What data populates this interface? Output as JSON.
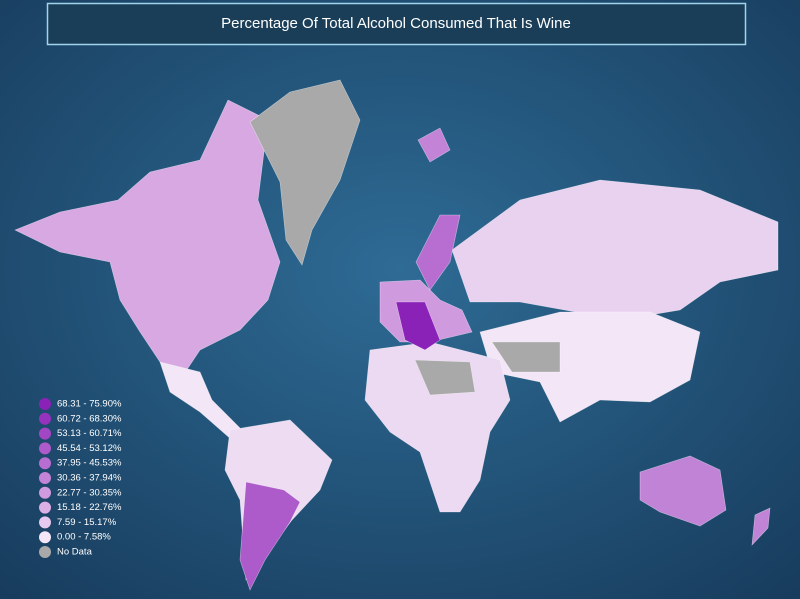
{
  "title": "Percentage Of Total Alcohol Consumed That Is Wine",
  "legend": {
    "items": [
      {
        "label": "68.31 - 75.90%",
        "color": "#8b22b8"
      },
      {
        "label": "60.72 - 68.30%",
        "color": "#9633be"
      },
      {
        "label": "53.13 - 60.71%",
        "color": "#a246c4"
      },
      {
        "label": "45.54 - 53.12%",
        "color": "#ad5aca"
      },
      {
        "label": "37.95 - 45.53%",
        "color": "#b86ed0"
      },
      {
        "label": "30.36 - 37.94%",
        "color": "#c383d7"
      },
      {
        "label": "22.77 - 30.35%",
        "color": "#cf9ade"
      },
      {
        "label": "15.18 - 22.76%",
        "color": "#dab0e5"
      },
      {
        "label": "7.59 - 15.17%",
        "color": "#e6c9ee"
      },
      {
        "label": "0.00 - 7.58%",
        "color": "#f3e6f7"
      },
      {
        "label": "No Data",
        "color": "#a9a9a9"
      }
    ]
  }
}
